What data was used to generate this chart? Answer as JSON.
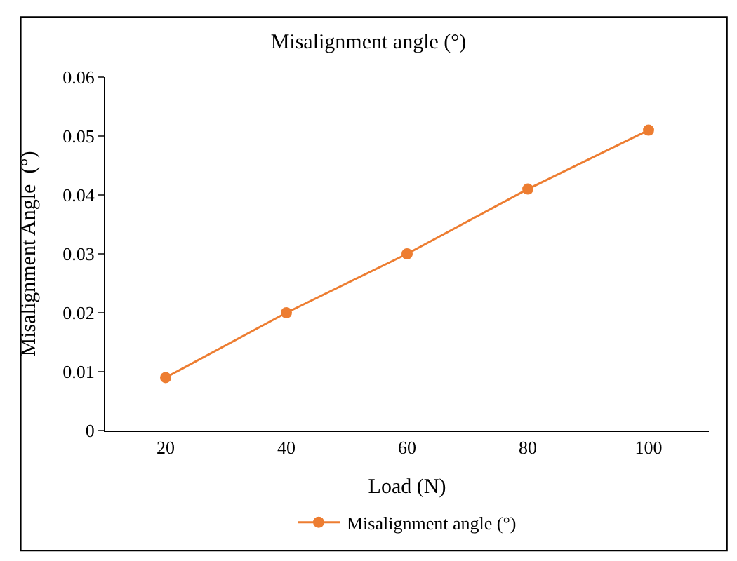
{
  "chart_data": {
    "type": "line",
    "title": "Misalignment angle (°)",
    "xlabel": "Load (N)",
    "ylabel": "Misalignment Angle  (°)",
    "categories": [
      "20",
      "40",
      "60",
      "80",
      "100"
    ],
    "series": [
      {
        "name": "Misalignment angle (°)",
        "color": "#ed7d31",
        "values": [
          0.009,
          0.02,
          0.03,
          0.041,
          0.051
        ]
      }
    ],
    "ylim": [
      0,
      0.06
    ],
    "yticks": [
      {
        "value": 0,
        "label": "0"
      },
      0.01,
      0.02,
      0.03,
      0.04,
      0.05,
      0.06
    ],
    "legend": "bottom",
    "marker": "circle",
    "line_style": "solid"
  }
}
